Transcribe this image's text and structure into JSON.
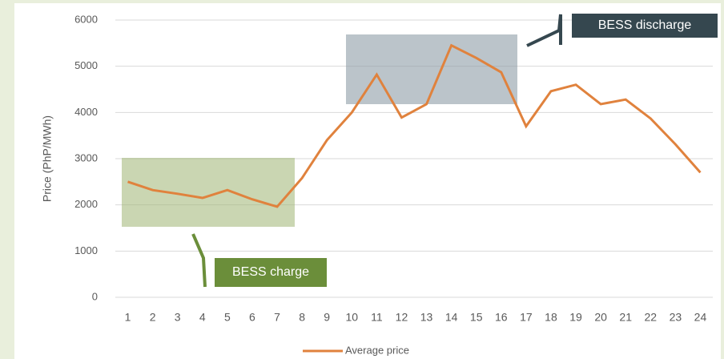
{
  "chart_data": {
    "type": "line",
    "y_label": "Price (PhP/MWh)",
    "categories": [
      "1",
      "2",
      "3",
      "4",
      "5",
      "6",
      "7",
      "8",
      "9",
      "10",
      "11",
      "12",
      "13",
      "14",
      "15",
      "16",
      "17",
      "18",
      "19",
      "20",
      "21",
      "22",
      "23",
      "24"
    ],
    "series": [
      {
        "name": "Average price",
        "color": "#e0823d",
        "values": [
          2500,
          2320,
          2240,
          2150,
          2320,
          2120,
          1960,
          2580,
          3400,
          4000,
          4820,
          3890,
          4180,
          5450,
          5180,
          4870,
          3700,
          4460,
          4600,
          4180,
          4280,
          3870,
          3310,
          2700
        ]
      }
    ],
    "ylim": [
      0,
      6000
    ],
    "yticks": [
      0,
      1000,
      2000,
      3000,
      4000,
      5000,
      6000
    ],
    "grid": true,
    "annotations": [
      "BESS charge",
      "BESS discharge"
    ]
  }
}
